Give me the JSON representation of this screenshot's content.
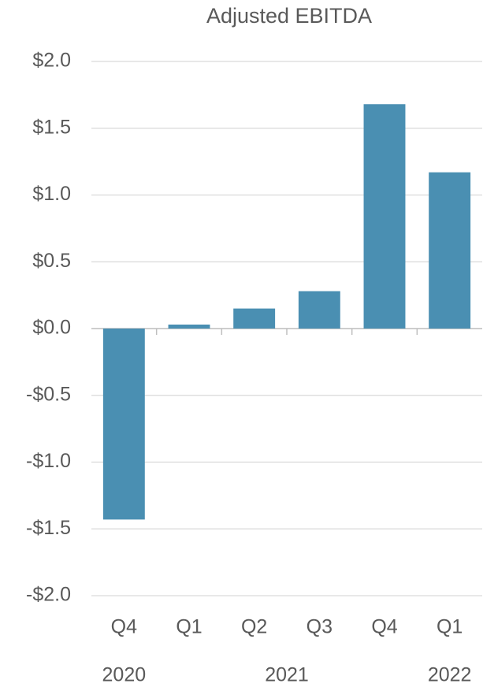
{
  "chart_data": {
    "type": "bar",
    "title": "Adjusted EBITDA",
    "groups": [
      {
        "label": "2020",
        "categories": [
          "Q4"
        ]
      },
      {
        "label": "2021",
        "categories": [
          "Q1",
          "Q2",
          "Q3",
          "Q4"
        ]
      },
      {
        "label": "2022",
        "categories": [
          "Q1"
        ]
      }
    ],
    "values": [
      -1.43,
      0.03,
      0.15,
      0.28,
      1.68,
      1.17
    ],
    "color": "#4a8fb2",
    "ylim": [
      -2.0,
      2.0
    ],
    "yticks": [
      {
        "value": 2.0,
        "label": "$2.0"
      },
      {
        "value": 1.5,
        "label": "$1.5"
      },
      {
        "value": 1.0,
        "label": "$1.0"
      },
      {
        "value": 0.5,
        "label": "$0.5"
      },
      {
        "value": 0,
        "label": "$0.0"
      },
      {
        "value": -0.5,
        "label": "-$0.5"
      },
      {
        "value": -1.0,
        "label": "-$1.0"
      },
      {
        "value": -1.5,
        "label": "-$1.5"
      },
      {
        "value": -2.0,
        "label": "-$2.0"
      }
    ],
    "grid": true
  }
}
